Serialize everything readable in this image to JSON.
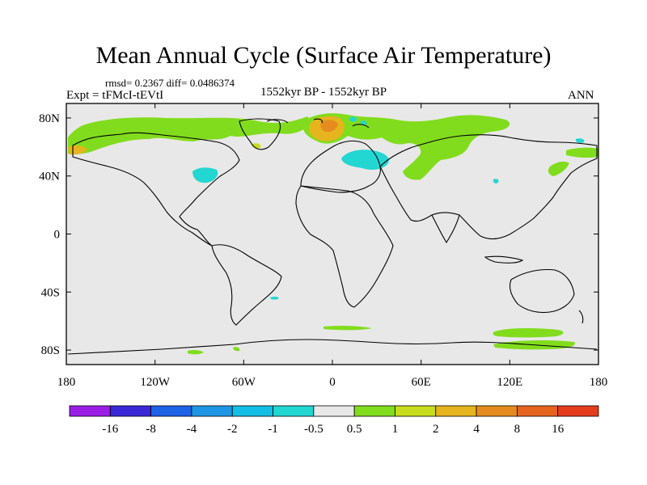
{
  "title": "Mean Annual Cycle (Surface Air Temperature)",
  "stats": "rmsd= 0.2367 diff= 0.0486374",
  "experiment": "Expt = tFMcI-tEVtI",
  "period": "1552kyr BP - 1552kyr BP",
  "season": "ANN",
  "map": {
    "lat_ticks": [
      "80N",
      "40N",
      "0",
      "40S",
      "80S"
    ],
    "lon_ticks": [
      "180",
      "120W",
      "60W",
      "0",
      "60E",
      "120E",
      "180"
    ],
    "lat_values": [
      80,
      40,
      0,
      -40,
      -80
    ],
    "lon_values": [
      -180,
      -120,
      -60,
      0,
      60,
      120,
      180
    ],
    "background_color": "#e8e8e8"
  },
  "colorbar": {
    "labels": [
      "-16",
      "-8",
      "-4",
      "-2",
      "-1",
      "-0.5",
      "0.5",
      "1",
      "2",
      "4",
      "8",
      "16"
    ],
    "colors": [
      "#9a1ee6",
      "#3a28d6",
      "#1e62e6",
      "#1e96e6",
      "#12bee6",
      "#22d6d2",
      "#e8e8e8",
      "#82dc1e",
      "#c8dc1e",
      "#e6b41e",
      "#e68c1e",
      "#e6641e",
      "#e63c1e"
    ]
  }
}
